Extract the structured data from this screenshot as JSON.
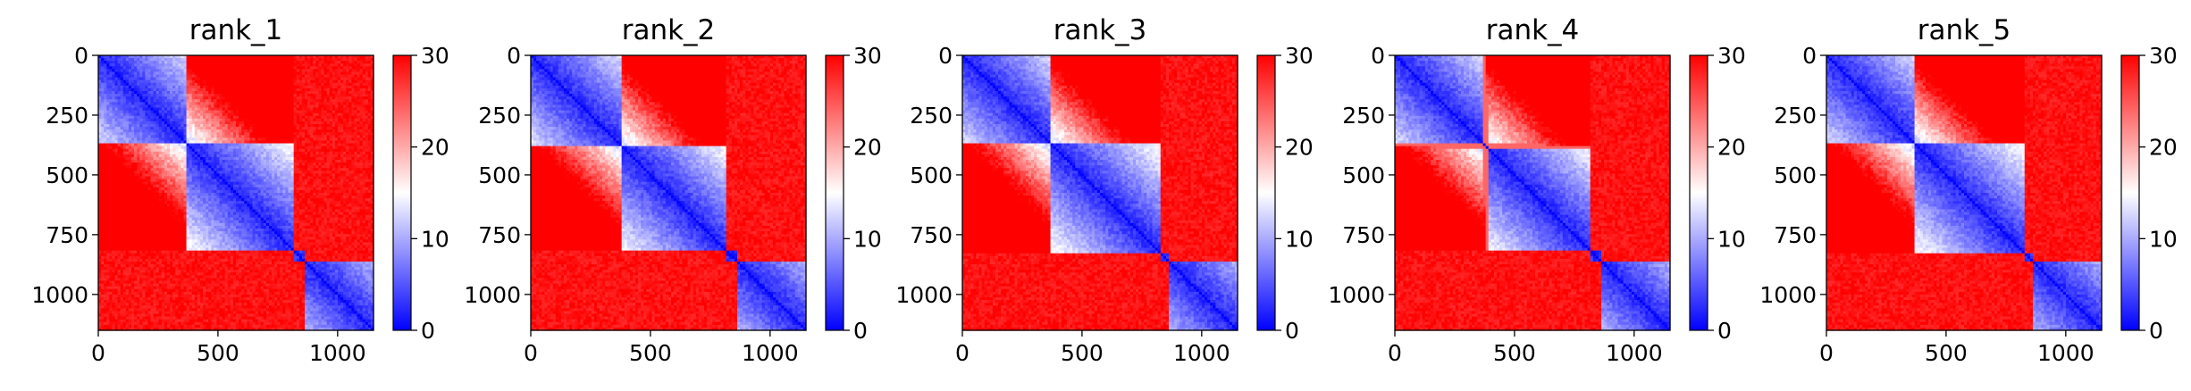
{
  "chart_data": [
    {
      "type": "heatmap",
      "title": "rank_1",
      "x_ticks": [
        "0",
        "500",
        "1000"
      ],
      "y_ticks": [
        "0",
        "250",
        "500",
        "750",
        "1000"
      ],
      "xlim": [
        0,
        1150
      ],
      "ylim": [
        1150,
        0
      ],
      "blocks": [
        [
          0,
          370
        ],
        [
          370,
          820
        ],
        [
          820,
          860
        ],
        [
          860,
          1150
        ]
      ],
      "grid_boundaries": [],
      "colorbar": {
        "ticks": [
          "0",
          "10",
          "20",
          "30"
        ],
        "range": [
          0,
          30
        ],
        "colormap": "bwr"
      }
    },
    {
      "type": "heatmap",
      "title": "rank_2",
      "x_ticks": [
        "0",
        "500",
        "1000"
      ],
      "y_ticks": [
        "0",
        "250",
        "500",
        "750",
        "1000"
      ],
      "xlim": [
        0,
        1150
      ],
      "ylim": [
        1150,
        0
      ],
      "blocks": [
        [
          0,
          380
        ],
        [
          380,
          815
        ],
        [
          815,
          860
        ],
        [
          860,
          1150
        ]
      ],
      "grid_boundaries": [],
      "colorbar": {
        "ticks": [
          "0",
          "10",
          "20",
          "30"
        ],
        "range": [
          0,
          30
        ],
        "colormap": "bwr"
      }
    },
    {
      "type": "heatmap",
      "title": "rank_3",
      "x_ticks": [
        "0",
        "500",
        "1000"
      ],
      "y_ticks": [
        "0",
        "250",
        "500",
        "750",
        "1000"
      ],
      "xlim": [
        0,
        1150
      ],
      "ylim": [
        1150,
        0
      ],
      "blocks": [
        [
          0,
          370
        ],
        [
          370,
          830
        ],
        [
          830,
          860
        ],
        [
          860,
          1150
        ]
      ],
      "grid_boundaries": [],
      "colorbar": {
        "ticks": [
          "0",
          "10",
          "20",
          "30"
        ],
        "range": [
          0,
          30
        ],
        "colormap": "bwr"
      }
    },
    {
      "type": "heatmap",
      "title": "rank_4",
      "x_ticks": [
        "0",
        "500",
        "1000"
      ],
      "y_ticks": [
        "0",
        "250",
        "500",
        "750",
        "1000"
      ],
      "xlim": [
        0,
        1150
      ],
      "ylim": [
        1150,
        0
      ],
      "blocks": [
        [
          0,
          380
        ],
        [
          380,
          820
        ],
        [
          820,
          860
        ],
        [
          860,
          1150
        ]
      ],
      "grid_boundaries": [
        380
      ],
      "colorbar": {
        "ticks": [
          "0",
          "10",
          "20",
          "30"
        ],
        "range": [
          0,
          30
        ],
        "colormap": "bwr"
      }
    },
    {
      "type": "heatmap",
      "title": "rank_5",
      "x_ticks": [
        "0",
        "500",
        "1000"
      ],
      "y_ticks": [
        "0",
        "250",
        "500",
        "750",
        "1000"
      ],
      "xlim": [
        0,
        1150
      ],
      "ylim": [
        1150,
        0
      ],
      "blocks": [
        [
          0,
          370
        ],
        [
          370,
          830
        ],
        [
          830,
          860
        ],
        [
          860,
          1150
        ]
      ],
      "grid_boundaries": [],
      "colorbar": {
        "ticks": [
          "0",
          "10",
          "20",
          "30"
        ],
        "range": [
          0,
          30
        ],
        "colormap": "bwr"
      }
    }
  ]
}
